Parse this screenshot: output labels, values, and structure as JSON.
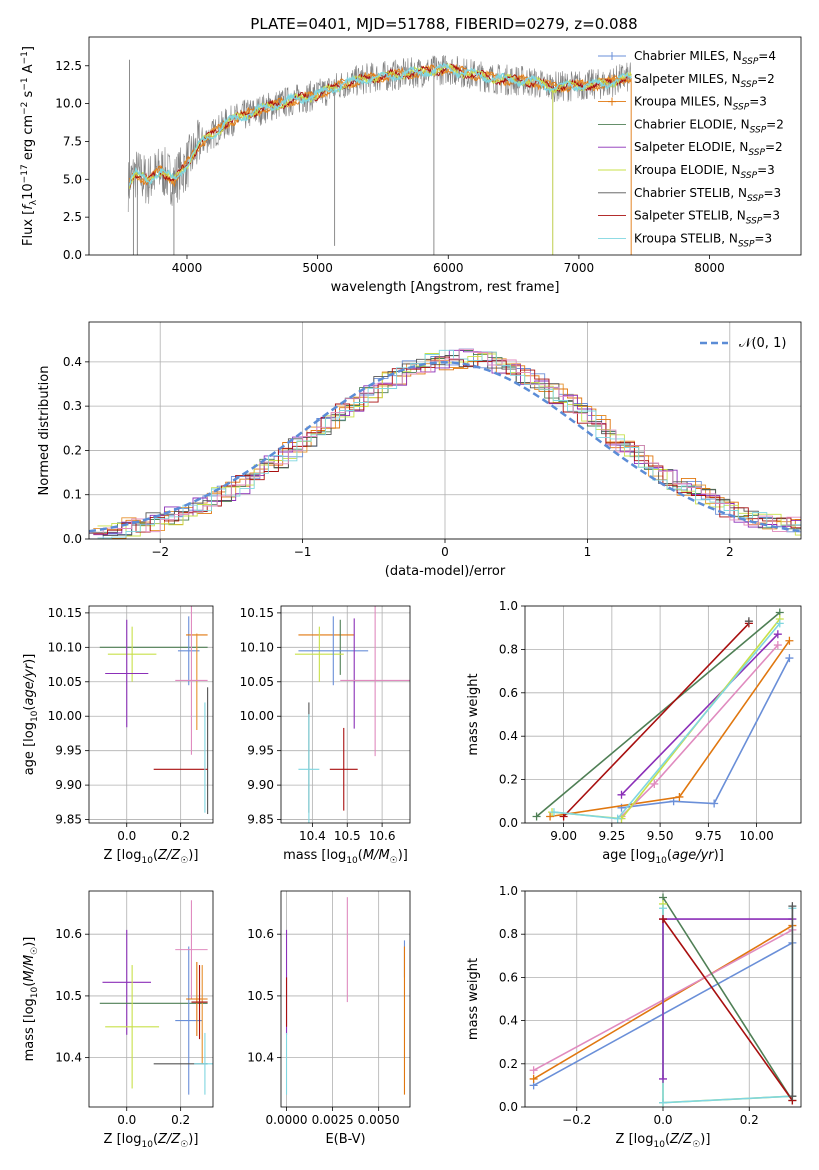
{
  "figure_title": "PLATE=0401, MJD=51788, FIBERID=0279, z=0.088",
  "colors": {
    "Chabrier MILES": "#6a8fd8",
    "Salpeter MILES": "#e6912e",
    "Kroupa MILES": "#e0770f",
    "Chabrier ELODIE": "#4f7f55",
    "Salpeter ELODIE": "#8b2fb8",
    "Kroupa ELODIE": "#c8e04a",
    "Chabrier STELIB": "#555555",
    "Salpeter STELIB": "#a80f0f",
    "Kroupa STELIB": "#7fd6e0",
    "pink": "#e08bbf",
    "normal": "#5b8cd6"
  },
  "chart_data": [
    {
      "id": "spectrum",
      "type": "line",
      "title": "PLATE=0401, MJD=51788, FIBERID=0279, z=0.088",
      "xlabel": "wavelength [Angstrom, rest frame]",
      "ylabel": "Flux [f_λ10^-17 erg cm^-2 s^-1 A^-1]",
      "xlim": [
        3250,
        8700
      ],
      "ylim": [
        0,
        14.4
      ],
      "xticks": [
        4000,
        5000,
        6000,
        7000,
        8000
      ],
      "yticks": [
        0.0,
        2.5,
        5.0,
        7.5,
        10.0,
        12.5
      ],
      "grid": false,
      "legend_position": "right",
      "data_x": [
        3550,
        3600,
        3700,
        3800,
        3900,
        4000,
        4100,
        4200,
        4300,
        4400,
        4500,
        4600,
        4800,
        5000,
        5200,
        5400,
        5600,
        5800,
        6000,
        6200,
        6400,
        6600,
        6800,
        7000,
        7200,
        7350
      ],
      "data_y": [
        4.6,
        5.4,
        4.9,
        5.6,
        4.9,
        6.0,
        7.4,
        8.0,
        8.7,
        9.1,
        9.4,
        9.7,
        10.2,
        10.6,
        11.3,
        11.7,
        11.9,
        12.1,
        12.3,
        11.9,
        11.6,
        11.5,
        11.1,
        11.2,
        11.3,
        11.7
      ],
      "legend": [
        {
          "label": "Chabrier MILES, N_SSP=4",
          "color": "#6a8fd8"
        },
        {
          "label": "Salpeter MILES, N_SSP=2",
          "color": "#e6912e"
        },
        {
          "label": "Kroupa MILES, N_SSP=3",
          "color": "#e0770f"
        },
        {
          "label": "Chabrier ELODIE, N_SSP=2",
          "color": "#4f7f55"
        },
        {
          "label": "Salpeter ELODIE, N_SSP=2",
          "color": "#8b2fb8"
        },
        {
          "label": "Kroupa ELODIE, N_SSP=3",
          "color": "#c8e04a"
        },
        {
          "label": "Chabrier STELIB, N_SSP=3",
          "color": "#555555"
        },
        {
          "label": "Salpeter STELIB, N_SSP=3",
          "color": "#a80f0f"
        },
        {
          "label": "Kroupa STELIB, N_SSP=3",
          "color": "#7fd6e0"
        }
      ]
    },
    {
      "id": "residuals",
      "type": "line",
      "xlabel": "(data-model)/error",
      "ylabel": "Normed distribution",
      "xlim": [
        -2.5,
        2.5
      ],
      "ylim": [
        0,
        0.49
      ],
      "xticks": [
        -2,
        -1,
        0,
        1,
        2
      ],
      "yticks": [
        0.0,
        0.1,
        0.2,
        0.3,
        0.4
      ],
      "grid": true,
      "legend_position": "top-right",
      "legend": [
        {
          "label": "N(0,1)",
          "color": "#5b8cd6"
        }
      ],
      "bin_width": 0.1
    },
    {
      "id": "z_age",
      "type": "scatter",
      "xlabel": "Z [log10(Z/Z☉)]",
      "ylabel": "age [log10(age/yr)]",
      "xlim": [
        -0.14,
        0.32
      ],
      "ylim": [
        9.845,
        10.16
      ],
      "xticks": [
        0.0,
        0.2
      ],
      "yticks": [
        9.85,
        9.9,
        9.95,
        10.0,
        10.05,
        10.1,
        10.15
      ],
      "grid": true,
      "points": [
        {
          "color": "#4f7f55",
          "x": 0.1,
          "xerr": 0.2,
          "y": 10.1,
          "yerr": 0.0
        },
        {
          "color": "#c8e04a",
          "x": 0.02,
          "xerr": 0.09,
          "y": 10.09,
          "yerr": 0.04
        },
        {
          "color": "#8b2fb8",
          "x": 0.0,
          "xerr": 0.08,
          "y": 10.062,
          "yerr": 0.078
        },
        {
          "color": "#6a8fd8",
          "x": 0.23,
          "xerr": 0.04,
          "y": 10.095,
          "yerr": 0.05
        },
        {
          "color": "#e0770f",
          "x": 0.26,
          "xerr": 0.04,
          "y": 10.118,
          "yerr": 0.0
        },
        {
          "color": "#e6912e",
          "x": 0.26,
          "xerr": 0.0,
          "y": 10.05,
          "yerr": 0.07
        },
        {
          "color": "#e08bbf",
          "x": 0.24,
          "xerr": 0.06,
          "y": 10.052,
          "yerr": 0.108
        },
        {
          "color": "#555555",
          "x": 0.3,
          "xerr": 0.0,
          "y": 9.95,
          "yerr": 0.092
        },
        {
          "color": "#a80f0f",
          "x": 0.2,
          "xerr": 0.1,
          "y": 9.923,
          "yerr": 0.0
        },
        {
          "color": "#7fd6e0",
          "x": 0.29,
          "xerr": 0.0,
          "y": 9.94,
          "yerr": 0.08
        }
      ]
    },
    {
      "id": "mass_age",
      "type": "scatter",
      "xlabel": "mass [log10(M/M☉)]",
      "ylabel": "",
      "xlim": [
        10.31,
        10.68
      ],
      "ylim": [
        9.845,
        10.16
      ],
      "xticks": [
        10.4,
        10.5,
        10.6
      ],
      "yticks": [
        9.85,
        9.9,
        9.95,
        10.0,
        10.05,
        10.1,
        10.15
      ],
      "grid": true,
      "points": [
        {
          "color": "#e0770f",
          "x": 10.44,
          "xerr": 0.08,
          "y": 10.118,
          "yerr": 0.0
        },
        {
          "color": "#4f7f55",
          "x": 10.48,
          "xerr": 0.0,
          "y": 10.1,
          "yerr": 0.04
        },
        {
          "color": "#c8e04a",
          "x": 10.42,
          "xerr": 0.07,
          "y": 10.09,
          "yerr": 0.04
        },
        {
          "color": "#6a8fd8",
          "x": 10.46,
          "xerr": 0.1,
          "y": 10.095,
          "yerr": 0.05
        },
        {
          "color": "#8b2fb8",
          "x": 10.52,
          "xerr": 0.0,
          "y": 10.062,
          "yerr": 0.08
        },
        {
          "color": "#e08bbf",
          "x": 10.58,
          "xerr": 0.1,
          "y": 10.052,
          "yerr": 0.11
        },
        {
          "color": "#555555",
          "x": 10.39,
          "xerr": 0.0,
          "y": 9.94,
          "yerr": 0.08
        },
        {
          "color": "#7fd6e0",
          "x": 10.39,
          "xerr": 0.03,
          "y": 9.923,
          "yerr": 0.08
        },
        {
          "color": "#a80f0f",
          "x": 10.49,
          "xerr": 0.04,
          "y": 9.923,
          "yerr": 0.06
        }
      ]
    },
    {
      "id": "age_weight",
      "type": "line",
      "xlabel": "age [log10(age/yr)]",
      "ylabel": "mass weight",
      "xlim": [
        8.8,
        10.23
      ],
      "ylim": [
        0,
        1.0
      ],
      "xticks": [
        9.0,
        9.25,
        9.5,
        9.75,
        10.0
      ],
      "yticks": [
        0.0,
        0.2,
        0.4,
        0.6,
        0.8,
        1.0
      ],
      "grid": true,
      "series": [
        {
          "color": "#6a8fd8",
          "x": [
            9.3,
            9.57,
            9.78,
            10.17
          ],
          "y": [
            0.07,
            0.1,
            0.09,
            0.76
          ]
        },
        {
          "color": "#e0770f",
          "x": [
            8.93,
            9.6,
            10.17
          ],
          "y": [
            0.03,
            0.12,
            0.84
          ]
        },
        {
          "color": "#e08bbf",
          "x": [
            9.3,
            9.47,
            10.11
          ],
          "y": [
            0.03,
            0.18,
            0.82
          ]
        },
        {
          "color": "#4f7f55",
          "x": [
            8.86,
            10.12
          ],
          "y": [
            0.03,
            0.97
          ]
        },
        {
          "color": "#8b2fb8",
          "x": [
            9.3,
            10.11
          ],
          "y": [
            0.13,
            0.87
          ]
        },
        {
          "color": "#c8e04a",
          "x": [
            8.94,
            9.3,
            10.12
          ],
          "y": [
            0.05,
            0.02,
            0.94
          ]
        },
        {
          "color": "#a80f0f",
          "x": [
            9.0,
            9.96
          ],
          "y": [
            0.03,
            0.92
          ]
        },
        {
          "color": "#7fd6e0",
          "x": [
            8.95,
            9.28,
            10.12
          ],
          "y": [
            0.05,
            0.02,
            0.92
          ]
        },
        {
          "color": "#555555",
          "x": [
            9.96
          ],
          "y": [
            0.93
          ]
        }
      ]
    },
    {
      "id": "z_mass",
      "type": "scatter",
      "xlabel": "Z [log10(Z/Z☉)]",
      "ylabel": "mass [log10(M/M☉)]",
      "xlim": [
        -0.14,
        0.32
      ],
      "ylim": [
        10.32,
        10.67
      ],
      "xticks": [
        0.0,
        0.2
      ],
      "yticks": [
        10.4,
        10.5,
        10.6
      ],
      "grid": true,
      "points": [
        {
          "color": "#8b2fb8",
          "x": 0.0,
          "xerr": 0.09,
          "y": 10.522,
          "yerr": 0.085
        },
        {
          "color": "#4f7f55",
          "x": 0.1,
          "xerr": 0.2,
          "y": 10.488,
          "yerr": 0.0
        },
        {
          "color": "#c8e04a",
          "x": 0.02,
          "xerr": 0.1,
          "y": 10.45,
          "yerr": 0.1
        },
        {
          "color": "#6a8fd8",
          "x": 0.23,
          "xerr": 0.05,
          "y": 10.46,
          "yerr": 0.12
        },
        {
          "color": "#e08bbf",
          "x": 0.24,
          "xerr": 0.06,
          "y": 10.575,
          "yerr": 0.08
        },
        {
          "color": "#e0770f",
          "x": 0.26,
          "xerr": 0.04,
          "y": 10.495,
          "yerr": 0.06
        },
        {
          "color": "#e6912e",
          "x": 0.28,
          "xerr": 0.0,
          "y": 10.47,
          "yerr": 0.08
        },
        {
          "color": "#a80f0f",
          "x": 0.27,
          "xerr": 0.03,
          "y": 10.49,
          "yerr": 0.06
        },
        {
          "color": "#555555",
          "x": 0.2,
          "xerr": 0.1,
          "y": 10.39,
          "yerr": 0.0
        },
        {
          "color": "#7fd6e0",
          "x": 0.29,
          "xerr": 0.04,
          "y": 10.39,
          "yerr": 0.05
        }
      ]
    },
    {
      "id": "ebv_mass",
      "type": "scatter",
      "xlabel": "E(B-V)",
      "ylabel": "",
      "xlim": [
        -0.0003,
        0.0067
      ],
      "ylim": [
        10.32,
        10.67
      ],
      "xticks": [
        0.0,
        0.0025,
        0.005
      ],
      "xticklabels": [
        "0.0000",
        "0.0025",
        "0.0050"
      ],
      "yticks": [
        10.4,
        10.5,
        10.6
      ],
      "grid": true,
      "points": [
        {
          "color": "#8b2fb8",
          "x": 0.0,
          "xerr": 0.0,
          "y": 10.522,
          "yerr": 0.085
        },
        {
          "color": "#a80f0f",
          "x": 0.0,
          "xerr": 0.0,
          "y": 10.49,
          "yerr": 0.04
        },
        {
          "color": "#7fd6e0",
          "x": 0.0,
          "xerr": 0.0,
          "y": 10.39,
          "yerr": 0.05
        },
        {
          "color": "#e08bbf",
          "x": 0.0033,
          "xerr": 0.0,
          "y": 10.575,
          "yerr": 0.085
        },
        {
          "color": "#6a8fd8",
          "x": 0.0064,
          "xerr": 0.0,
          "y": 10.56,
          "yerr": 0.03
        },
        {
          "color": "#e0770f",
          "x": 0.0064,
          "xerr": 0.0,
          "y": 10.46,
          "yerr": 0.12
        }
      ]
    },
    {
      "id": "z_weight",
      "type": "line",
      "xlabel": "Z [log10(Z/Z☉)]",
      "ylabel": "mass weight",
      "xlim": [
        -0.32,
        0.32
      ],
      "ylim": [
        0,
        1.0
      ],
      "xticks": [
        -0.2,
        0.0,
        0.2
      ],
      "yticks": [
        0.0,
        0.2,
        0.4,
        0.6,
        0.8,
        1.0
      ],
      "grid": true,
      "series": [
        {
          "color": "#6a8fd8",
          "x": [
            -0.3,
            0.3
          ],
          "y": [
            0.1,
            0.76
          ]
        },
        {
          "color": "#e0770f",
          "x": [
            -0.3,
            0.3
          ],
          "y": [
            0.13,
            0.84
          ]
        },
        {
          "color": "#e08bbf",
          "x": [
            -0.3,
            0.3
          ],
          "y": [
            0.17,
            0.82
          ]
        },
        {
          "color": "#4f7f55",
          "x": [
            0.0,
            0.3
          ],
          "y": [
            0.97,
            0.03
          ]
        },
        {
          "color": "#c8e04a",
          "x": [
            0.0,
            0.0,
            0.3
          ],
          "y": [
            0.94,
            0.02,
            0.05
          ]
        },
        {
          "color": "#7fd6e0",
          "x": [
            0.0,
            0.0,
            0.3,
            0.3
          ],
          "y": [
            0.92,
            0.02,
            0.05,
            0.92
          ]
        },
        {
          "color": "#8b2fb8",
          "x": [
            0.0,
            0.0,
            0.3
          ],
          "y": [
            0.13,
            0.87,
            0.87
          ]
        },
        {
          "color": "#a80f0f",
          "x": [
            0.0,
            0.3
          ],
          "y": [
            0.87,
            0.03
          ]
        },
        {
          "color": "#555555",
          "x": [
            0.3,
            0.3
          ],
          "y": [
            0.93,
            0.05
          ]
        }
      ]
    }
  ]
}
